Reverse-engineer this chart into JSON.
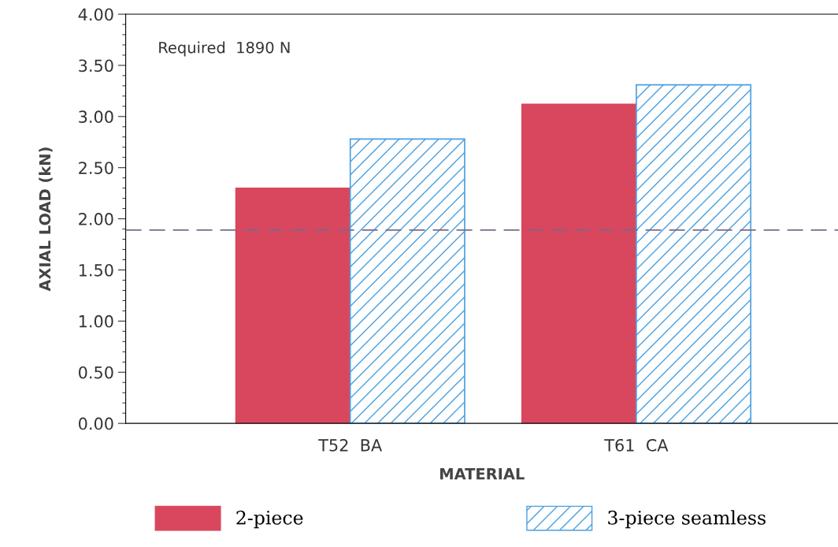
{
  "chart_data": {
    "type": "bar",
    "xlabel": "MATERIAL",
    "ylabel": "AXIAL LOAD (kN)",
    "categories": [
      "T52  BA",
      "T61  CA"
    ],
    "series": [
      {
        "name": "2-piece",
        "color": "#d9475e",
        "values": [
          2.3,
          3.12
        ]
      },
      {
        "name": "3-piece seamless",
        "color": "#4a9fe0",
        "values": [
          2.78,
          3.31
        ]
      }
    ],
    "ylim": [
      0,
      4
    ],
    "yticks": [
      {
        "value": 0,
        "label": "0.00"
      },
      {
        "value": 0.5,
        "label": "0.50"
      },
      {
        "value": 1,
        "label": "1.00"
      },
      {
        "value": 1.5,
        "label": "1.50"
      },
      {
        "value": 2,
        "label": "2.00"
      },
      {
        "value": 2.5,
        "label": "2.50"
      },
      {
        "value": 3,
        "label": "3.00"
      },
      {
        "value": 3.5,
        "label": "3.50"
      },
      {
        "value": 4,
        "label": "4.00"
      }
    ],
    "ref_lines": [
      {
        "axis": "y",
        "value": 1.89,
        "color": "#7a6a8a",
        "line_style": "dashed"
      }
    ],
    "annotations": [
      "Required  1890 N"
    ],
    "legend": "bottom",
    "grid": false
  }
}
